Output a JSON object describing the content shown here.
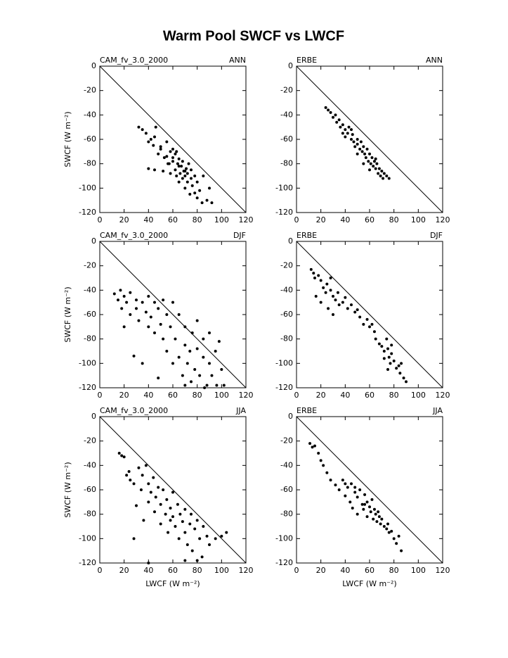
{
  "title": "Warm Pool SWCF vs LWCF",
  "chart_data": [
    {
      "type": "scatter",
      "title": "CAM_fv_3.0_2000",
      "season": "ANN",
      "ylabel": "SWCF (W m⁻²)",
      "color": "#000000",
      "xlim": [
        0,
        120
      ],
      "ylim": [
        -120,
        0
      ],
      "xticks": [
        0,
        20,
        40,
        60,
        80,
        100,
        120
      ],
      "yticks": [
        0,
        -20,
        -40,
        -60,
        -80,
        -100,
        -120
      ],
      "x": [
        32,
        35,
        38,
        40,
        42,
        44,
        45,
        46,
        48,
        50,
        52,
        53,
        55,
        56,
        58,
        58,
        60,
        60,
        62,
        62,
        63,
        64,
        65,
        65,
        66,
        67,
        68,
        68,
        69,
        70,
        70,
        71,
        72,
        72,
        73,
        74,
        75,
        75,
        76,
        78,
        78,
        80,
        80,
        82,
        84,
        85,
        88,
        90,
        92,
        40,
        45,
        50,
        55,
        60,
        65,
        70,
        57,
        63
      ],
      "y": [
        -50,
        -52,
        -55,
        -84,
        -60,
        -65,
        -85,
        -50,
        -72,
        -68,
        -86,
        -75,
        -62,
        -80,
        -70,
        -88,
        -78,
        -75,
        -85,
        -72,
        -90,
        -80,
        -76,
        -95,
        -88,
        -82,
        -92,
        -78,
        -86,
        -90,
        -100,
        -84,
        -95,
        -88,
        -80,
        -105,
        -92,
        -85,
        -98,
        -90,
        -104,
        -108,
        -95,
        -102,
        -112,
        -90,
        -110,
        -100,
        -112,
        -62,
        -58,
        -66,
        -74,
        -68,
        -82,
        -86,
        -80,
        -70
      ]
    },
    {
      "type": "scatter",
      "title": "ERBE",
      "season": "ANN",
      "color": "#000000",
      "xlim": [
        0,
        120
      ],
      "ylim": [
        -120,
        0
      ],
      "xticks": [
        0,
        20,
        40,
        60,
        80,
        100,
        120
      ],
      "yticks": [
        0,
        -20,
        -40,
        -60,
        -80,
        -100,
        -120
      ],
      "x": [
        24,
        26,
        28,
        30,
        32,
        33,
        35,
        36,
        38,
        40,
        40,
        42,
        43,
        45,
        46,
        47,
        48,
        50,
        50,
        52,
        53,
        54,
        55,
        56,
        57,
        58,
        59,
        60,
        61,
        62,
        63,
        64,
        65,
        66,
        67,
        68,
        69,
        70,
        71,
        72,
        74,
        76,
        45,
        38,
        55,
        60,
        50,
        65
      ],
      "y": [
        -34,
        -36,
        -38,
        -42,
        -40,
        -46,
        -44,
        -50,
        -48,
        -52,
        -58,
        -55,
        -50,
        -60,
        -56,
        -62,
        -66,
        -60,
        -64,
        -68,
        -62,
        -70,
        -66,
        -72,
        -75,
        -68,
        -78,
        -72,
        -80,
        -75,
        -82,
        -78,
        -84,
        -80,
        -88,
        -84,
        -90,
        -86,
        -92,
        -88,
        -90,
        -92,
        -52,
        -55,
        -80,
        -85,
        -72,
        -76
      ]
    },
    {
      "type": "scatter",
      "title": "CAM_fv_3.0_2000",
      "season": "DJF",
      "ylabel": "SWCF (W m⁻²)",
      "color": "#000000",
      "xlim": [
        0,
        120
      ],
      "ylim": [
        -120,
        0
      ],
      "xticks": [
        0,
        20,
        40,
        60,
        80,
        100,
        120
      ],
      "yticks": [
        0,
        -20,
        -40,
        -60,
        -80,
        -100,
        -120
      ],
      "x": [
        12,
        15,
        17,
        18,
        20,
        20,
        22,
        25,
        25,
        28,
        30,
        30,
        32,
        35,
        35,
        38,
        40,
        40,
        42,
        45,
        45,
        48,
        48,
        50,
        52,
        52,
        55,
        55,
        58,
        60,
        60,
        62,
        65,
        65,
        68,
        70,
        70,
        72,
        74,
        75,
        76,
        78,
        80,
        80,
        82,
        85,
        85,
        88,
        90,
        90,
        92,
        95,
        96,
        100,
        102,
        98,
        86,
        70
      ],
      "y": [
        -43,
        -48,
        -40,
        -55,
        -45,
        -70,
        -50,
        -42,
        -60,
        -94,
        -48,
        -55,
        -65,
        -50,
        -100,
        -58,
        -45,
        -70,
        -62,
        -50,
        -75,
        -55,
        -112,
        -68,
        -48,
        -80,
        -60,
        -90,
        -70,
        -50,
        -100,
        -80,
        -95,
        -60,
        -110,
        -85,
        -70,
        -100,
        -90,
        -115,
        -75,
        -105,
        -88,
        -65,
        -110,
        -95,
        -80,
        -118,
        -100,
        -75,
        -110,
        -90,
        -118,
        -105,
        -118,
        -82,
        -120,
        -118
      ]
    },
    {
      "type": "scatter",
      "title": "ERBE",
      "season": "DJF",
      "color": "#000000",
      "xlim": [
        0,
        120
      ],
      "ylim": [
        -120,
        0
      ],
      "xticks": [
        0,
        20,
        40,
        60,
        80,
        100,
        120
      ],
      "yticks": [
        0,
        -20,
        -40,
        -60,
        -80,
        -100,
        -120
      ],
      "x": [
        12,
        14,
        15,
        16,
        18,
        20,
        20,
        22,
        24,
        25,
        26,
        28,
        28,
        30,
        30,
        32,
        34,
        35,
        38,
        40,
        42,
        45,
        48,
        50,
        52,
        55,
        58,
        60,
        62,
        64,
        65,
        68,
        70,
        72,
        74,
        75,
        76,
        77,
        78,
        78,
        80,
        82,
        84,
        85,
        86,
        88,
        90,
        75,
        72
      ],
      "y": [
        -23,
        -26,
        -30,
        -45,
        -28,
        -32,
        -50,
        -38,
        -42,
        -35,
        -55,
        -40,
        -30,
        -45,
        -60,
        -48,
        -42,
        -52,
        -50,
        -46,
        -55,
        -52,
        -58,
        -56,
        -62,
        -68,
        -64,
        -70,
        -68,
        -74,
        -80,
        -84,
        -86,
        -90,
        -80,
        -88,
        -95,
        -100,
        -92,
        -85,
        -98,
        -104,
        -102,
        -108,
        -100,
        -112,
        -115,
        -105,
        -96
      ]
    },
    {
      "type": "scatter",
      "title": "CAM_fv_3.0_2000",
      "season": "JJA",
      "ylabel": "SWCF (W m⁻²)",
      "xlabel": "LWCF (W m⁻²)",
      "color": "#000000",
      "xlim": [
        0,
        120
      ],
      "ylim": [
        -120,
        0
      ],
      "xticks": [
        0,
        20,
        40,
        60,
        80,
        100,
        120
      ],
      "yticks": [
        0,
        -20,
        -40,
        -60,
        -80,
        -100,
        -120
      ],
      "x": [
        16,
        18,
        20,
        22,
        24,
        25,
        28,
        28,
        30,
        32,
        34,
        35,
        36,
        38,
        40,
        40,
        40,
        42,
        44,
        45,
        46,
        48,
        50,
        50,
        52,
        54,
        55,
        56,
        58,
        60,
        60,
        62,
        64,
        65,
        66,
        68,
        70,
        70,
        72,
        74,
        75,
        76,
        78,
        80,
        82,
        84,
        85,
        88,
        90,
        95,
        100,
        104,
        70,
        80,
        58
      ],
      "y": [
        -30,
        -32,
        -33,
        -48,
        -45,
        -52,
        -100,
        -55,
        -73,
        -42,
        -60,
        -48,
        -85,
        -40,
        -55,
        -70,
        -120,
        -62,
        -50,
        -78,
        -66,
        -58,
        -72,
        -88,
        -60,
        -80,
        -68,
        -95,
        -75,
        -82,
        -62,
        -90,
        -72,
        -100,
        -80,
        -86,
        -76,
        -95,
        -105,
        -88,
        -80,
        -110,
        -92,
        -85,
        -100,
        -115,
        -90,
        -98,
        -105,
        -100,
        -98,
        -95,
        -118,
        -118,
        -85
      ]
    },
    {
      "type": "scatter",
      "title": "ERBE",
      "season": "JJA",
      "xlabel": "LWCF (W m⁻²)",
      "color": "#000000",
      "xlim": [
        0,
        120
      ],
      "ylim": [
        -120,
        0
      ],
      "xticks": [
        0,
        20,
        40,
        60,
        80,
        100,
        120
      ],
      "yticks": [
        0,
        -20,
        -40,
        -60,
        -80,
        -100,
        -120
      ],
      "x": [
        11,
        13,
        15,
        18,
        20,
        22,
        25,
        28,
        32,
        35,
        38,
        40,
        42,
        44,
        45,
        46,
        48,
        50,
        50,
        52,
        54,
        55,
        56,
        58,
        58,
        60,
        61,
        62,
        63,
        64,
        65,
        66,
        67,
        68,
        69,
        70,
        72,
        74,
        75,
        76,
        78,
        80,
        82,
        84,
        86,
        48,
        40,
        56
      ],
      "y": [
        -22,
        -25,
        -24,
        -30,
        -36,
        -40,
        -46,
        -52,
        -56,
        -60,
        -52,
        -65,
        -58,
        -70,
        -55,
        -75,
        -62,
        -66,
        -80,
        -60,
        -72,
        -76,
        -64,
        -70,
        -82,
        -74,
        -78,
        -68,
        -84,
        -76,
        -80,
        -86,
        -78,
        -82,
        -88,
        -84,
        -90,
        -92,
        -88,
        -95,
        -94,
        -100,
        -104,
        -98,
        -110,
        -58,
        -55,
        -72
      ]
    }
  ]
}
